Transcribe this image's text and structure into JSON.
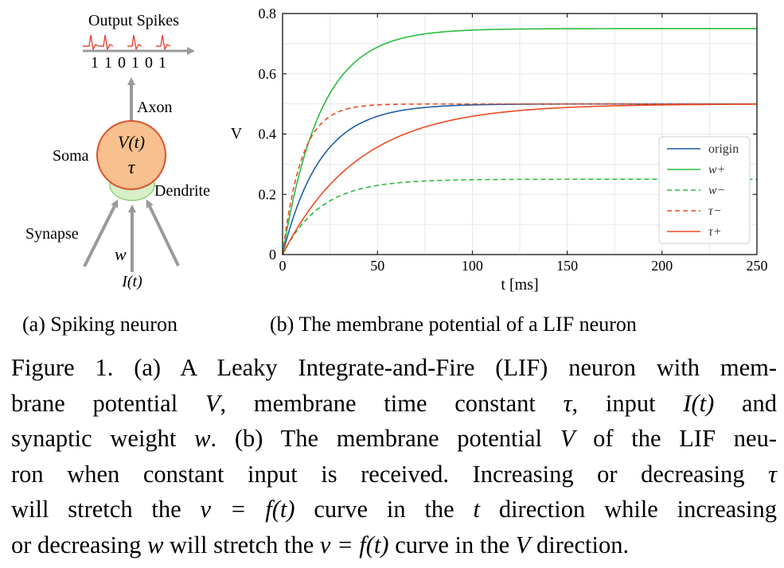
{
  "panel_a": {
    "output_spikes_label": "Output Spikes",
    "spike_train": "1 1 0 1 0 1",
    "axon_label": "Axon",
    "soma_label": "Soma",
    "potential_label": "V(t)",
    "tau_label": "τ",
    "dendrite_label": "Dendrite",
    "synapse_label": "Synapse",
    "weight_label": "w",
    "input_label": "I(t)",
    "colors": {
      "soma_fill": "#f7c08e",
      "soma_stroke": "#d9532c",
      "dendrite_fill": "#d6efc7",
      "dendrite_stroke": "#8fcf7a",
      "arrow": "#9a9a9a",
      "spike": "#e8463a"
    }
  },
  "sub_captions": {
    "a": "(a)  Spiking neuron",
    "b": "(b)  The membrane potential of a LIF neuron"
  },
  "chart_data": {
    "type": "line",
    "xlabel": "t [ms]",
    "ylabel": "V",
    "xlim": [
      0,
      250
    ],
    "ylim": [
      0,
      0.8
    ],
    "xticks": [
      "0",
      "50",
      "100",
      "150",
      "200",
      "250"
    ],
    "yticks": [
      "0",
      "0.2",
      "0.4",
      "0.6",
      "0.8"
    ],
    "grid": true,
    "legend_position": "center-right",
    "series": [
      {
        "name": "origin",
        "color": "#1f5fa8",
        "dash": "solid",
        "vmax": 0.5,
        "tau": 20
      },
      {
        "name": "w+",
        "color": "#2bbd3f",
        "dash": "solid",
        "vmax": 0.75,
        "tau": 20
      },
      {
        "name": "w−",
        "color": "#2bbd3f",
        "dash": "dashed",
        "vmax": 0.25,
        "tau": 20
      },
      {
        "name": "τ−",
        "color": "#ee4b22",
        "dash": "dashed",
        "vmax": 0.5,
        "tau": 10
      },
      {
        "name": "τ+",
        "color": "#ee4b22",
        "dash": "solid",
        "vmax": 0.5,
        "tau": 40
      }
    ]
  },
  "caption": {
    "line1_a": "Figure 1. (a) A Leaky Integrate-and-Fire (LIF) neuron with mem-",
    "line2_a": "brane potential ",
    "line2_v": "V",
    "line2_b": ", membrane time constant ",
    "line2_tau": "τ",
    "line2_c": ", input ",
    "line2_i": "I(t)",
    "line2_d": " and",
    "line3_a": "synaptic weight ",
    "line3_w": "w",
    "line3_b": ". (b) The membrane potential ",
    "line3_v": "V",
    "line3_c": " of the LIF neu-",
    "line4_a": "ron when constant input is received.  Increasing or decreasing ",
    "line4_tau": "τ",
    "line5_a": "will stretch the ",
    "line5_eq": "v = f(t)",
    "line5_b": " curve in the ",
    "line5_t": "t",
    "line5_c": " direction while increasing",
    "line6_a": "or decreasing ",
    "line6_w": "w",
    "line6_b": " will stretch the ",
    "line6_eq": "v = f(t)",
    "line6_c": " curve in the ",
    "line6_v": "V",
    "line6_d": " direction."
  }
}
